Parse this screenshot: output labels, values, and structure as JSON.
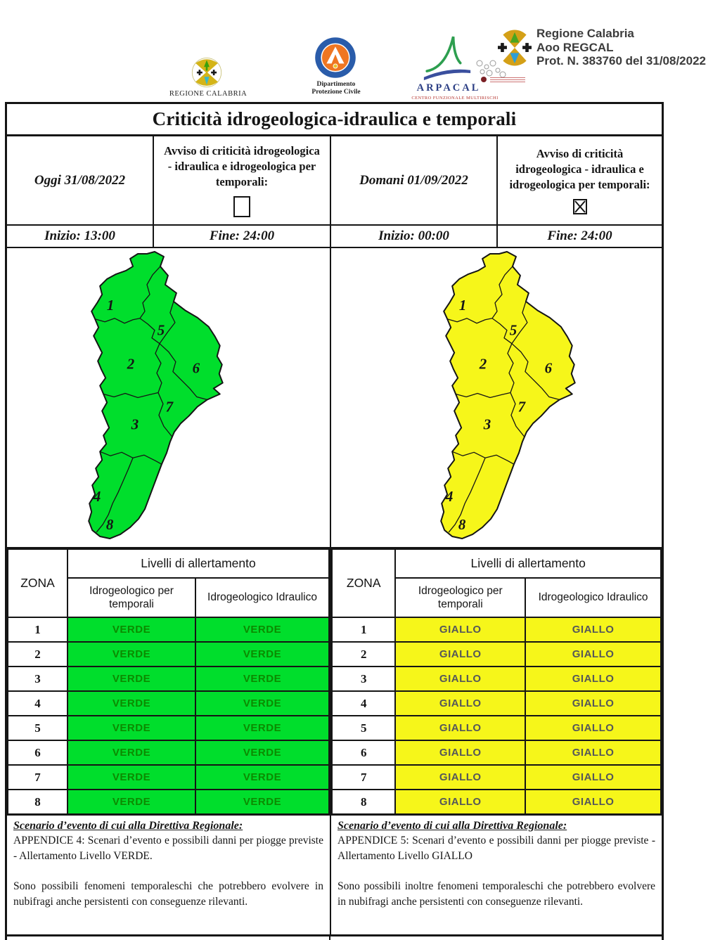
{
  "header": {
    "regione_logo_caption": "REGIONE CALABRIA",
    "pc_logo_caption_1": "Dipartimento",
    "pc_logo_caption_2": "Protezione Civile",
    "arpacal_name": "ARPACAL",
    "arpacal_caption": "CENTRO FUNZIONALE MULTIRISCHI",
    "protocol_line1": "Regione Calabria",
    "protocol_line2": "Aoo REGCAL",
    "protocol_line3": "Prot. N. 383760 del 31/08/2022"
  },
  "title": "Criticità idrogeologica-idraulica e temporali",
  "avviso_label": "Avviso di criticità idrogeologica - idraulica e idrogeologica per temporali:",
  "today": {
    "date_label": "Oggi 31/08/2022",
    "avviso_checked": false,
    "inizio": "Inizio: 13:00",
    "fine": "Fine: 24:00",
    "level": "VERDE",
    "map_color": "#00de2c",
    "cell_color": "#00de2c",
    "level_text_color": "#0c8a00",
    "scenario_heading": "Scenario d’evento di cui alla Direttiva Regionale:",
    "scenario_appendice": "APPENDICE 4: Scenari d’evento e possibili danni per piogge previste - Allertamento Livello VERDE.",
    "scenario_note": "Sono possibili fenomeni temporaleschi che potrebbero evolvere in nubifragi anche persistenti con conseguenze rilevanti."
  },
  "tomorrow": {
    "date_label": "Domani 01/09/2022",
    "avviso_checked": true,
    "inizio": "Inizio: 00:00",
    "fine": "Fine: 24:00",
    "level": "GIALLO",
    "map_color": "#f6f61a",
    "cell_color": "#f6f61a",
    "level_text_color": "#55575a",
    "scenario_heading": "Scenario d’evento di cui alla Direttiva Regionale:",
    "scenario_appendice": "APPENDICE 5: Scenari d’evento e possibili danni per piogge previste - Allertamento Livello GIALLO",
    "scenario_note": "Sono possibili inoltre fenomeni temporaleschi che potrebbero evolvere in nubifragi anche persistenti con conseguenze rilevanti."
  },
  "zona_table": {
    "zona_header": "ZONA",
    "group_header": "Livelli di allertamento",
    "col_temporali": "Idrogeologico per temporali",
    "col_idraulico": "Idrogeologico Idraulico",
    "zones": [
      "1",
      "2",
      "3",
      "4",
      "5",
      "6",
      "7",
      "8"
    ]
  },
  "map_zones": [
    "1",
    "2",
    "3",
    "4",
    "5",
    "6",
    "7",
    "8"
  ]
}
